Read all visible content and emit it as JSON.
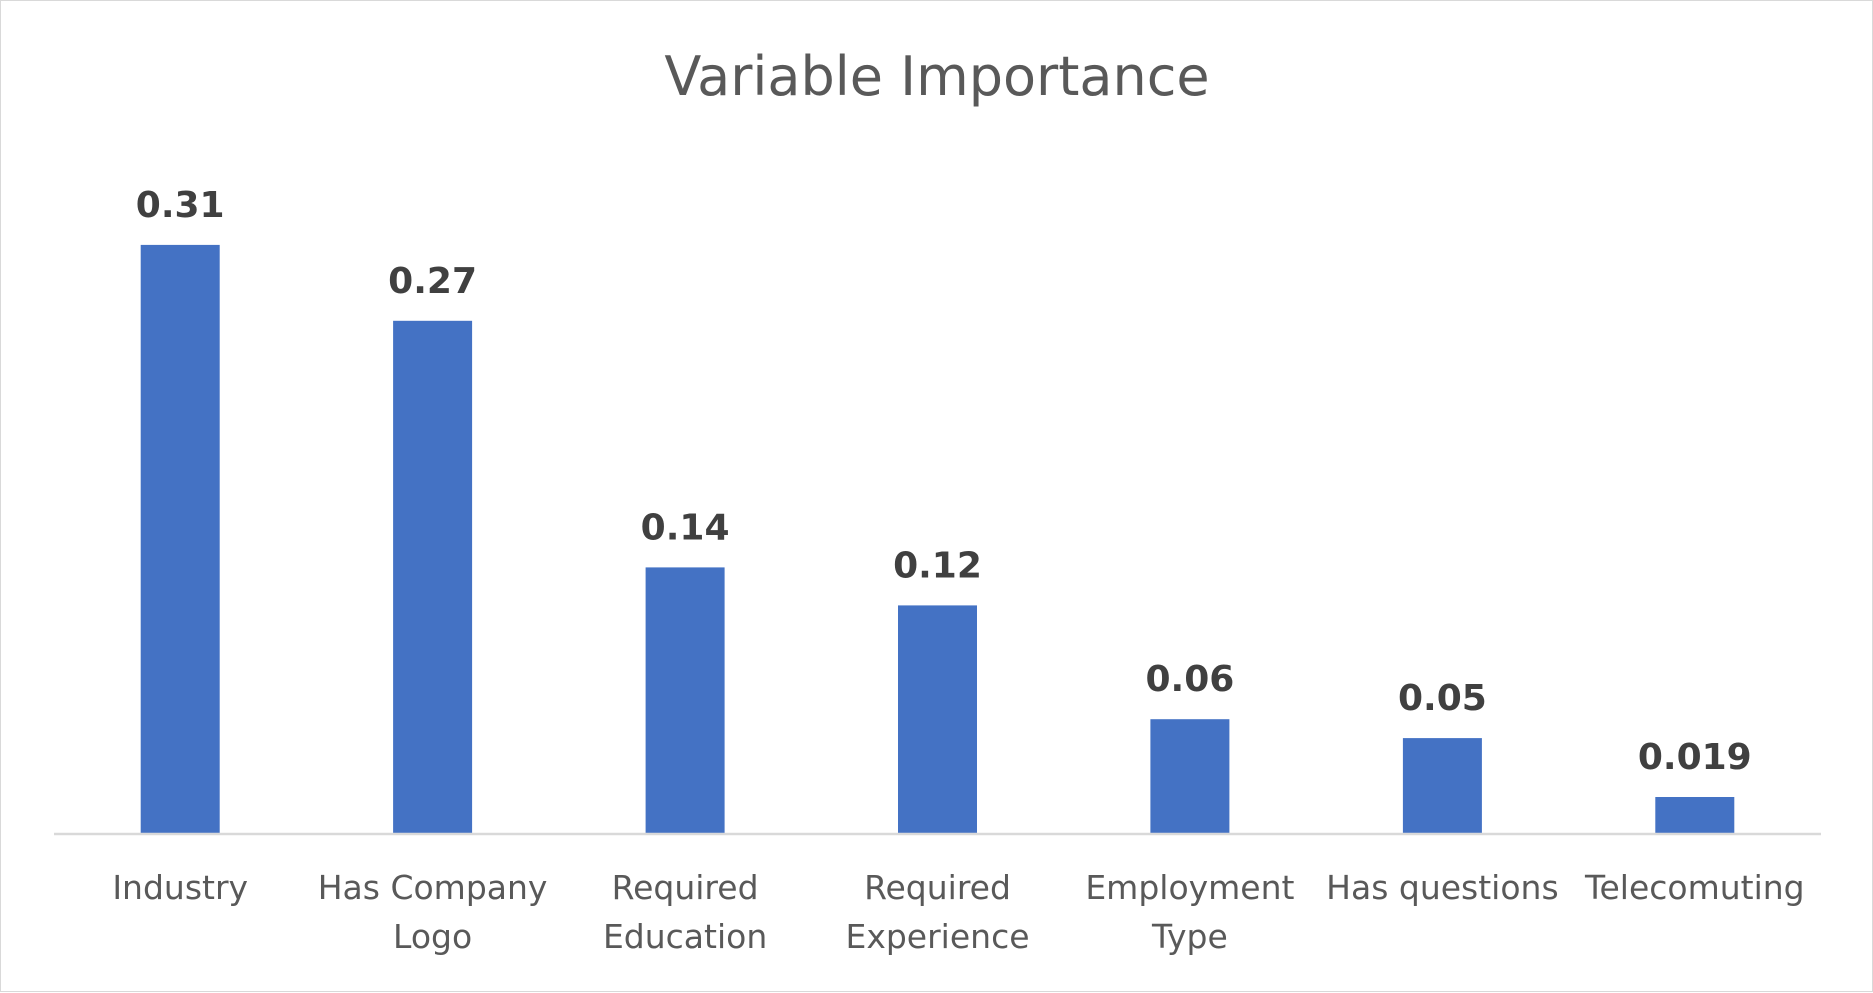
{
  "chart_data": {
    "type": "bar",
    "title": "Variable Importance",
    "categories": [
      [
        "Industry"
      ],
      [
        "Has Company",
        "Logo"
      ],
      [
        "Required",
        "Education"
      ],
      [
        "Required",
        "Experience"
      ],
      [
        "Employment",
        "Type"
      ],
      [
        "Has questions"
      ],
      [
        "Telecomuting"
      ]
    ],
    "values": [
      0.31,
      0.27,
      0.14,
      0.12,
      0.06,
      0.05,
      0.019
    ],
    "data_labels": [
      "0.31",
      "0.27",
      "0.14",
      "0.12",
      "0.06",
      "0.05",
      "0.019"
    ],
    "xlabel": "",
    "ylabel": "",
    "grid": false,
    "legend": "none",
    "bar_color": "#4472C4"
  }
}
